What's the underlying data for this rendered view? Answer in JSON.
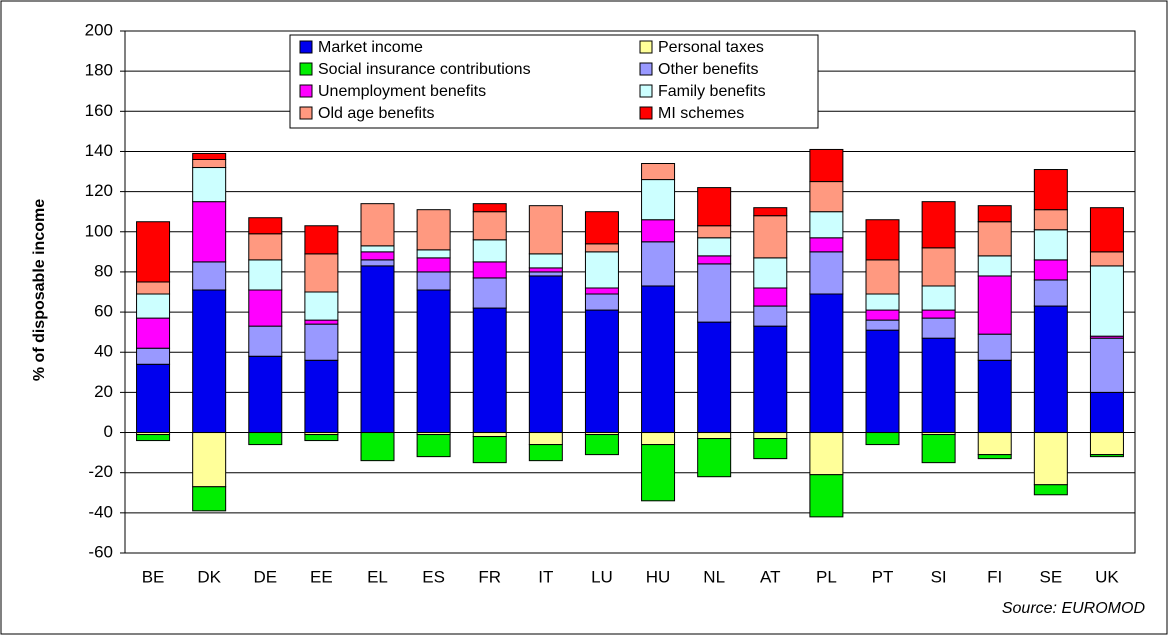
{
  "chart_data": {
    "type": "stacked_bar",
    "ylabel": "% of disposable income",
    "source": "Source: EUROMOD",
    "categories": [
      "BE",
      "DK",
      "DE",
      "EE",
      "EL",
      "ES",
      "FR",
      "IT",
      "LU",
      "HU",
      "NL",
      "AT",
      "PL",
      "PT",
      "SI",
      "FI",
      "SE",
      "UK"
    ],
    "ylim": [
      -60,
      200
    ],
    "yticks": [
      -60,
      -40,
      -20,
      0,
      20,
      40,
      60,
      80,
      100,
      120,
      140,
      160,
      180,
      200
    ],
    "grid": true,
    "legend": "top",
    "series": [
      {
        "name": "Market income",
        "color": "#0000ee",
        "values": [
          34,
          71,
          38,
          36,
          83,
          71,
          62,
          78,
          61,
          73,
          55,
          53,
          69,
          51,
          47,
          36,
          63,
          20
        ]
      },
      {
        "name": "Personal taxes",
        "color": "#ffff99",
        "values": [
          -1,
          -27,
          0,
          -1,
          0,
          -1,
          -2,
          -6,
          -1,
          -6,
          -3,
          -3,
          -21,
          0,
          -1,
          -11,
          -26,
          -11
        ]
      },
      {
        "name": "Social insurance contributions",
        "color": "#00ee00",
        "values": [
          -3,
          -12,
          -6,
          -3,
          -14,
          -11,
          -13,
          -8,
          -10,
          -28,
          -19,
          -10,
          -21,
          -6,
          -14,
          -2,
          -5,
          -1
        ]
      },
      {
        "name": "Other benefits",
        "color": "#9999ff",
        "values": [
          8,
          14,
          15,
          18,
          3,
          9,
          15,
          2,
          8,
          22,
          29,
          10,
          21,
          5,
          10,
          13,
          13,
          27
        ]
      },
      {
        "name": "Unemployment benefits",
        "color": "#ff00ff",
        "values": [
          15,
          30,
          18,
          2,
          4,
          7,
          8,
          2,
          3,
          11,
          4,
          9,
          7,
          5,
          4,
          29,
          10,
          1
        ]
      },
      {
        "name": "Family benefits",
        "color": "#ccffff",
        "values": [
          12,
          17,
          15,
          14,
          3,
          4,
          11,
          7,
          18,
          20,
          9,
          15,
          13,
          8,
          12,
          10,
          15,
          35
        ]
      },
      {
        "name": "Old age benefits",
        "color": "#ff9980",
        "values": [
          6,
          4,
          13,
          19,
          21,
          20,
          14,
          24,
          4,
          8,
          6,
          21,
          15,
          17,
          19,
          17,
          10,
          7
        ]
      },
      {
        "name": "MI schemes",
        "color": "#ff0000",
        "values": [
          30,
          3,
          8,
          14,
          0,
          0,
          4,
          0,
          16,
          0,
          19,
          4,
          16,
          20,
          23,
          8,
          20,
          22
        ]
      }
    ]
  }
}
